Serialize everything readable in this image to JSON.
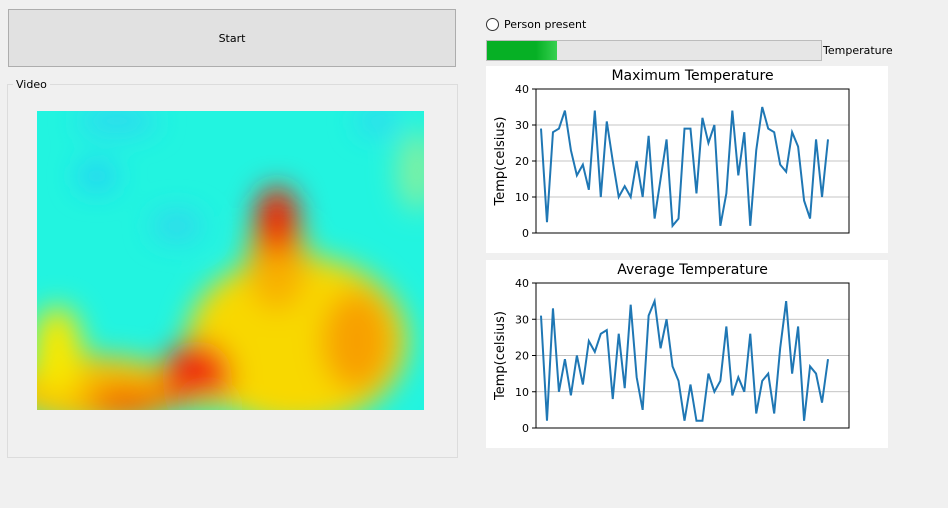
{
  "start_button": "Start",
  "video_group": "Video",
  "radio_label": "Person present",
  "progress": {
    "label": "Temperature",
    "value": 21,
    "range": [
      0,
      100
    ]
  },
  "chart_data": [
    {
      "type": "line",
      "title": "Maximum Temperature",
      "y_label": "Temp(celsius)",
      "color": "#1f77b4",
      "grid": true,
      "ylim": [
        0,
        40
      ],
      "yticks": [
        0,
        10,
        20,
        30,
        40
      ],
      "values": [
        29,
        3,
        28,
        29,
        34,
        23,
        16,
        19,
        12,
        34,
        10,
        31,
        20,
        10,
        13,
        10,
        20,
        10,
        27,
        4,
        15,
        26,
        2,
        4,
        29,
        29,
        11,
        32,
        25,
        30,
        2,
        11,
        34,
        16,
        28,
        2,
        23,
        35,
        29,
        28,
        19,
        17,
        28,
        24,
        9,
        4,
        26,
        10,
        26
      ]
    },
    {
      "type": "line",
      "title": "Average Temperature",
      "y_label": "Temp(celsius)",
      "color": "#1f77b4",
      "grid": true,
      "ylim": [
        0,
        40
      ],
      "yticks": [
        0,
        10,
        20,
        30,
        40
      ],
      "values": [
        31,
        2,
        33,
        10,
        19,
        9,
        20,
        12,
        24,
        21,
        26,
        27,
        8,
        26,
        11,
        34,
        14,
        5,
        31,
        35,
        22,
        30,
        17,
        13,
        2,
        12,
        2,
        2,
        15,
        10,
        13,
        28,
        9,
        14,
        10,
        26,
        4,
        13,
        15,
        4,
        22,
        35,
        15,
        28,
        2,
        17,
        15,
        7,
        19
      ]
    }
  ]
}
